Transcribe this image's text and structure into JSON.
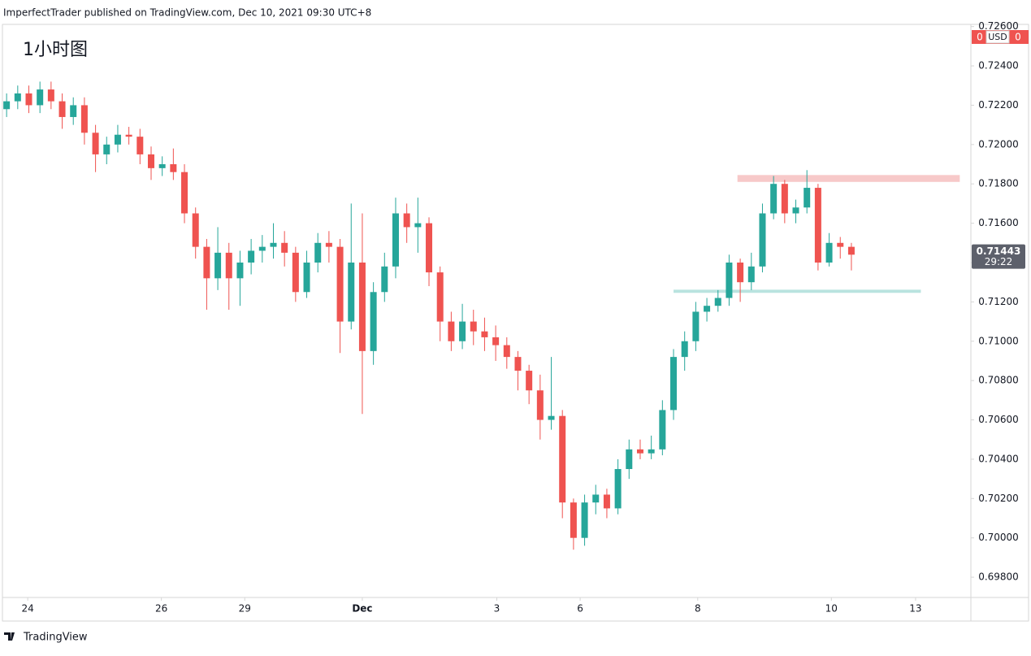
{
  "header": "ImperfectTrader published on TradingView.com, Dec 10, 2021 09:30 UTC+8",
  "footer": "TradingView",
  "chart_data": {
    "type": "candlestick",
    "title": "1小时图",
    "currency": "USD",
    "currency_flags": [
      "0",
      "0"
    ],
    "up_color": "#26a69a",
    "down_color": "#ef5350",
    "x": [
      0,
      4,
      8,
      12,
      16,
      20,
      24,
      28,
      32,
      36,
      40,
      44,
      48,
      52,
      56,
      60,
      64,
      68,
      72,
      76,
      80,
      84,
      88,
      92,
      96,
      100,
      104,
      108,
      112,
      116,
      120,
      124,
      128,
      132,
      136,
      140,
      144,
      148,
      152,
      156,
      160,
      164,
      168,
      172,
      176,
      180,
      184,
      188,
      192,
      196,
      200,
      204,
      208,
      212,
      216,
      220,
      224,
      228,
      232,
      236,
      240,
      244,
      248,
      252,
      256,
      260,
      264,
      268,
      272,
      276,
      280,
      284,
      288,
      292,
      296,
      300,
      304
    ],
    "open": [
      0.7218,
      0.7222,
      0.7226,
      0.722,
      0.7228,
      0.7222,
      0.7214,
      0.722,
      0.7206,
      0.7195,
      0.72,
      0.7205,
      0.7204,
      0.7195,
      0.7188,
      0.719,
      0.7186,
      0.7165,
      0.7148,
      0.7132,
      0.7145,
      0.7132,
      0.714,
      0.7146,
      0.7148,
      0.715,
      0.7145,
      0.7125,
      0.714,
      0.715,
      0.7148,
      0.711,
      0.714,
      0.7095,
      0.7125,
      0.7138,
      0.7165,
      0.7158,
      0.716,
      0.7135,
      0.711,
      0.71,
      0.711,
      0.7105,
      0.7102,
      0.7098,
      0.7092,
      0.7085,
      0.7075,
      0.706,
      0.7062,
      0.7018,
      0.7,
      0.7018,
      0.7022,
      0.7015,
      0.7035,
      0.7045,
      0.7043,
      0.7045,
      0.7065,
      0.7092,
      0.71,
      0.7115,
      0.7118,
      0.7122,
      0.714,
      0.713,
      0.7138,
      0.7165,
      0.718,
      0.7165,
      0.7168,
      0.7178,
      0.714,
      0.715,
      0.7148
    ],
    "high": [
      0.7226,
      0.723,
      0.723,
      0.7232,
      0.7232,
      0.7226,
      0.7224,
      0.7224,
      0.721,
      0.7204,
      0.721,
      0.7209,
      0.7208,
      0.7199,
      0.7194,
      0.7198,
      0.719,
      0.7168,
      0.7152,
      0.7158,
      0.715,
      0.7146,
      0.7152,
      0.7154,
      0.716,
      0.7156,
      0.7148,
      0.7146,
      0.7155,
      0.7156,
      0.7152,
      0.717,
      0.7165,
      0.713,
      0.7145,
      0.7173,
      0.717,
      0.7173,
      0.7163,
      0.7138,
      0.7115,
      0.7119,
      0.7116,
      0.7112,
      0.7108,
      0.7102,
      0.7095,
      0.7088,
      0.7083,
      0.7092,
      0.7065,
      0.702,
      0.7022,
      0.7027,
      0.7025,
      0.704,
      0.705,
      0.705,
      0.7052,
      0.707,
      0.7096,
      0.7105,
      0.712,
      0.7122,
      0.7126,
      0.7144,
      0.7142,
      0.7145,
      0.717,
      0.7184,
      0.7182,
      0.7172,
      0.7187,
      0.718,
      0.7155,
      0.7153,
      0.715
    ],
    "low": [
      0.7214,
      0.7218,
      0.7216,
      0.7216,
      0.7218,
      0.7208,
      0.721,
      0.72,
      0.7186,
      0.719,
      0.7196,
      0.72,
      0.719,
      0.7182,
      0.7184,
      0.7182,
      0.716,
      0.7142,
      0.7116,
      0.7126,
      0.7116,
      0.7118,
      0.7134,
      0.714,
      0.7142,
      0.7138,
      0.712,
      0.7122,
      0.7135,
      0.714,
      0.7094,
      0.7106,
      0.7063,
      0.7088,
      0.712,
      0.7132,
      0.715,
      0.7145,
      0.7128,
      0.71,
      0.7095,
      0.7096,
      0.7098,
      0.7095,
      0.709,
      0.7086,
      0.7075,
      0.7068,
      0.705,
      0.7055,
      0.701,
      0.6994,
      0.6996,
      0.7012,
      0.701,
      0.7012,
      0.703,
      0.704,
      0.704,
      0.7042,
      0.706,
      0.7085,
      0.7095,
      0.711,
      0.7115,
      0.7118,
      0.712,
      0.7126,
      0.7135,
      0.7162,
      0.716,
      0.716,
      0.7165,
      0.7136,
      0.7138,
      0.7142,
      0.7136
    ],
    "close": [
      0.7222,
      0.7226,
      0.722,
      0.7228,
      0.7222,
      0.7214,
      0.722,
      0.7206,
      0.7195,
      0.72,
      0.7205,
      0.7204,
      0.7195,
      0.7188,
      0.719,
      0.7186,
      0.7165,
      0.7148,
      0.7132,
      0.7145,
      0.7132,
      0.714,
      0.7146,
      0.7148,
      0.715,
      0.7145,
      0.7125,
      0.714,
      0.715,
      0.7148,
      0.711,
      0.714,
      0.7095,
      0.7125,
      0.7138,
      0.7165,
      0.7158,
      0.716,
      0.7135,
      0.711,
      0.71,
      0.711,
      0.7105,
      0.7102,
      0.7098,
      0.7092,
      0.7085,
      0.7075,
      0.706,
      0.7062,
      0.7018,
      0.7,
      0.7018,
      0.7022,
      0.7015,
      0.7035,
      0.7045,
      0.7043,
      0.7045,
      0.7065,
      0.7092,
      0.71,
      0.7115,
      0.7118,
      0.7122,
      0.714,
      0.713,
      0.7138,
      0.7165,
      0.718,
      0.7165,
      0.7168,
      0.7178,
      0.714,
      0.715,
      0.7148,
      0.7144
    ],
    "zones": [
      {
        "x": [
          263,
          343
        ],
        "y": [
          0.7181,
          0.71845
        ],
        "color": "#f7c9c9"
      },
      {
        "x": [
          240,
          329
        ],
        "y": [
          0.71246,
          0.71262
        ],
        "color": "#b9e3df"
      }
    ],
    "last_price": {
      "value": 0.71443,
      "label": "0.71443"
    },
    "countdown": "29:22",
    "xlim": [
      -1.5,
      347
    ],
    "xticks": [
      {
        "value": 7.6,
        "label": "24"
      },
      {
        "value": 55.7,
        "label": "26"
      },
      {
        "value": 85.7,
        "label": "29"
      },
      {
        "value": 128,
        "label": "Dec"
      },
      {
        "value": 176.4,
        "label": "3"
      },
      {
        "value": 206.4,
        "label": "6"
      },
      {
        "value": 248.7,
        "label": "8"
      },
      {
        "value": 296.8,
        "label": "10"
      },
      {
        "value": 327.1,
        "label": "13"
      }
    ],
    "ylim": [
      0.69697,
      0.72611
    ],
    "yticks": [
      {
        "value": 0.698,
        "label": "0.69800"
      },
      {
        "value": 0.7,
        "label": "0.70000"
      },
      {
        "value": 0.702,
        "label": "0.70200"
      },
      {
        "value": 0.704,
        "label": "0.70400"
      },
      {
        "value": 0.706,
        "label": "0.70600"
      },
      {
        "value": 0.708,
        "label": "0.70800"
      },
      {
        "value": 0.71,
        "label": "0.71000"
      },
      {
        "value": 0.712,
        "label": "0.71200"
      },
      {
        "value": 0.714,
        "label": "0.71400"
      },
      {
        "value": 0.716,
        "label": "0.71600"
      },
      {
        "value": 0.718,
        "label": "0.71800"
      },
      {
        "value": 0.72,
        "label": "0.72000"
      },
      {
        "value": 0.722,
        "label": "0.72200"
      },
      {
        "value": 0.724,
        "label": "0.72400"
      },
      {
        "value": 0.726,
        "label": "0.72600"
      }
    ]
  }
}
